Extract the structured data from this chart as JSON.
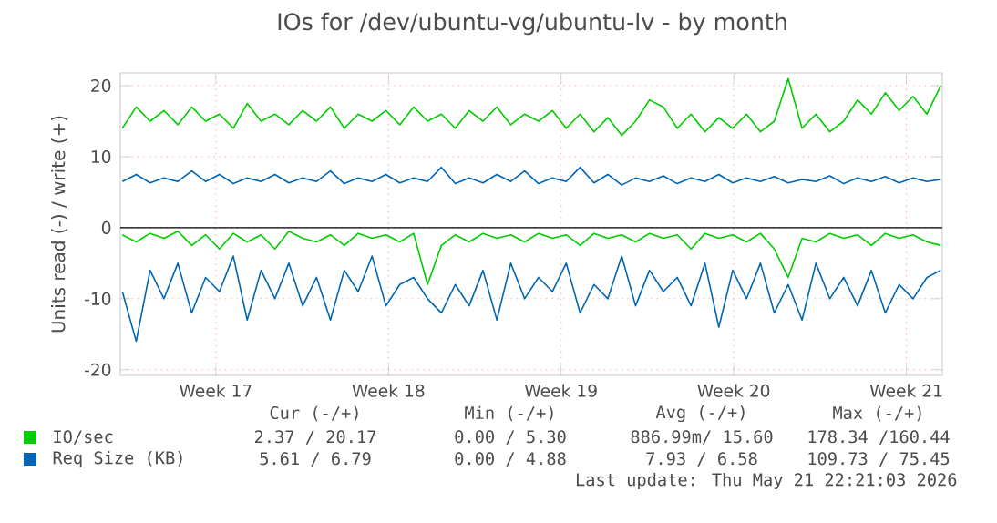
{
  "chart_data": {
    "type": "line",
    "title": "IOs for /dev/ubuntu-vg/ubuntu-lv - by month",
    "ylabel": "Units read (-) / write (+)",
    "x": [
      "2026-04-18T17:00",
      "2026-04-19T06:30",
      "2026-04-19T20:00",
      "2026-04-20T09:30",
      "2026-04-20T23:00",
      "2026-04-21T12:30",
      "2026-04-22T02:00",
      "2026-04-22T15:30",
      "2026-04-23T05:00",
      "2026-04-23T18:30",
      "2026-04-24T08:00",
      "2026-04-24T21:30",
      "2026-04-25T11:00",
      "2026-04-26T00:30",
      "2026-04-26T14:00",
      "2026-04-27T03:30",
      "2026-04-27T17:00",
      "2026-04-28T06:30",
      "2026-04-28T20:00",
      "2026-04-29T09:30",
      "2026-04-29T23:00",
      "2026-04-30T12:30",
      "2026-05-01T02:00",
      "2026-05-01T15:30",
      "2026-05-02T05:00",
      "2026-05-02T18:30",
      "2026-05-03T08:00",
      "2026-05-03T21:30",
      "2026-05-04T11:00",
      "2026-05-05T00:30",
      "2026-05-05T14:00",
      "2026-05-06T03:30",
      "2026-05-06T17:00",
      "2026-05-07T06:30",
      "2026-05-07T20:00",
      "2026-05-08T09:30",
      "2026-05-08T23:00",
      "2026-05-09T12:30",
      "2026-05-10T02:00",
      "2026-05-10T15:30",
      "2026-05-11T05:00",
      "2026-05-11T18:30",
      "2026-05-12T08:00",
      "2026-05-12T21:30",
      "2026-05-13T11:00",
      "2026-05-14T00:30",
      "2026-05-14T14:00",
      "2026-05-15T03:30",
      "2026-05-15T17:00",
      "2026-05-16T06:30",
      "2026-05-16T20:00",
      "2026-05-17T09:30",
      "2026-05-17T23:00",
      "2026-05-18T12:30",
      "2026-05-19T02:00",
      "2026-05-19T15:30",
      "2026-05-20T05:00",
      "2026-05-20T18:30",
      "2026-05-21T08:00",
      "2026-05-21T21:30"
    ],
    "series": [
      {
        "color": "#00cc00",
        "values": [
          -1,
          -2,
          -0.8,
          -1.5,
          -0.5,
          -2.5,
          -1,
          -3,
          -0.8,
          -2,
          -1,
          -3,
          -0.5,
          -1.5,
          -2,
          -1,
          -2.5,
          -0.8,
          -1.5,
          -1,
          -2,
          -0.8,
          -8,
          -2.5,
          -1,
          -2,
          -0.8,
          -1.5,
          -1,
          -2,
          -0.8,
          -1.5,
          -1,
          -2.5,
          -0.8,
          -1.5,
          -1,
          -2,
          -0.8,
          -1.5,
          -1,
          -3,
          -0.8,
          -1.5,
          -1,
          -2,
          -0.8,
          -3,
          -7,
          -1.5,
          -2,
          -0.8,
          -1.5,
          -1,
          -2.5,
          -0.8,
          -1.5,
          -1,
          -2,
          -2.5
        ]
      },
      {
        "name": "IO/sec",
        "color": "#00cc00",
        "values": [
          14,
          17,
          15,
          16.5,
          14.5,
          17,
          15,
          16,
          14,
          17.5,
          15,
          16,
          14.5,
          16.5,
          15,
          17,
          14,
          16,
          15,
          16.5,
          14.5,
          17,
          15,
          16,
          14,
          16.5,
          15,
          17,
          14.5,
          16,
          15,
          16.5,
          14,
          16,
          13.5,
          15.5,
          13,
          15,
          18,
          17,
          14,
          16,
          13.5,
          15.5,
          14,
          16,
          13.5,
          15,
          21,
          14,
          16,
          13.5,
          15,
          18,
          16,
          19,
          16.5,
          18.5,
          16,
          20
        ]
      },
      {
        "color": "#0066b3",
        "values": [
          -9,
          -16,
          -6,
          -10,
          -5,
          -12,
          -7,
          -9,
          -4,
          -13,
          -6,
          -10,
          -5,
          -11,
          -7,
          -13,
          -6,
          -9,
          -4,
          -11,
          -8,
          -7,
          -10,
          -12,
          -8,
          -11,
          -6,
          -13,
          -5,
          -10,
          -7,
          -9,
          -5,
          -12,
          -8,
          -10,
          -4,
          -11,
          -6,
          -9,
          -7,
          -11,
          -5,
          -14,
          -6,
          -10,
          -5,
          -12,
          -8,
          -13,
          -5,
          -10,
          -7,
          -11,
          -6,
          -12,
          -8,
          -10,
          -7,
          -6
        ]
      },
      {
        "name": "Req Size (KB)",
        "color": "#0066b3",
        "values": [
          6.5,
          7.5,
          6.3,
          7,
          6.5,
          8,
          6.5,
          7.5,
          6.2,
          7,
          6.5,
          7.5,
          6.3,
          7,
          6.5,
          8,
          6.2,
          7,
          6.5,
          7.5,
          6.3,
          7,
          6.5,
          8.5,
          6.2,
          7,
          6.3,
          7.5,
          6.5,
          8,
          6.2,
          7,
          6.5,
          8.5,
          6.3,
          7.5,
          6,
          7,
          6.5,
          7.3,
          6.2,
          7,
          6.5,
          7.5,
          6.3,
          7,
          6.5,
          7.2,
          6.3,
          6.8,
          6.5,
          7.3,
          6.2,
          7,
          6.5,
          7.2,
          6.3,
          7,
          6.5,
          6.8
        ]
      }
    ],
    "xlim": [
      "2026-04-18T15:00",
      "2026-05-21T23:00"
    ],
    "xticks": [
      {
        "value": "2026-04-22T12:00",
        "label": "Week 17"
      },
      {
        "value": "2026-04-29T12:00",
        "label": "Week 18"
      },
      {
        "value": "2026-05-06T12:00",
        "label": "Week 19"
      },
      {
        "value": "2026-05-13T12:00",
        "label": "Week 20"
      },
      {
        "value": "2026-05-20T12:00",
        "label": "Week 21"
      }
    ],
    "ylim": [
      -20.8,
      21.8
    ],
    "yticks": [
      -20,
      -10,
      0,
      10,
      20
    ],
    "ref_lines": [
      {
        "axis": "y",
        "value": 0,
        "color": "#000000"
      }
    ],
    "grid": true,
    "legend": "bottom",
    "annotations": [
      "Cur (-/+)",
      "Min (-/+)",
      "Avg (-/+)",
      "Max (-/+)",
      "2.37 / 20.17",
      "0.00 /  5.30",
      "886.99m/ 15.60",
      "178.34 /160.44",
      "5.61 /  6.79",
      "0.00 /  4.88",
      "7.93 /  6.58",
      "109.73 / 75.45",
      "Last update: Thu May 21 22:21:03 2026"
    ]
  }
}
